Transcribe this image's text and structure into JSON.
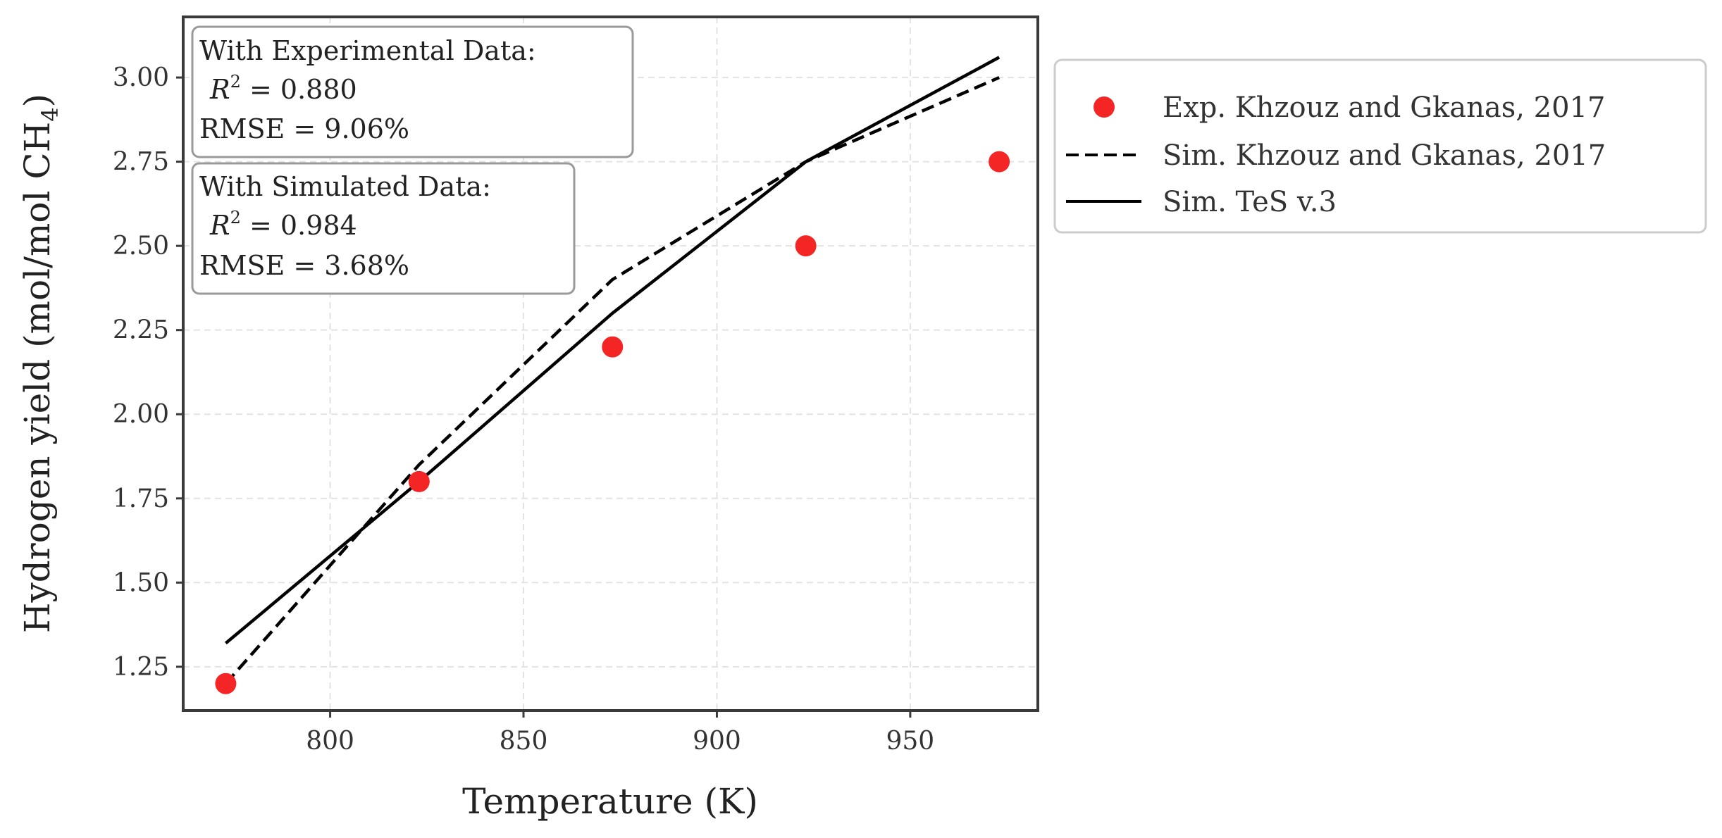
{
  "chart_data": {
    "type": "line",
    "title": "",
    "xlabel": "Temperature (K)",
    "ylabel": {
      "main": "Hydrogen yield (mol/mol CH",
      "subscript": "4",
      "close": ")"
    },
    "xlim": [
      762,
      983
    ],
    "ylim": [
      1.12,
      3.18
    ],
    "xticks": [
      800,
      850,
      900,
      950
    ],
    "xtick_labels": [
      "800",
      "850",
      "900",
      "950"
    ],
    "yticks": [
      1.25,
      1.5,
      1.75,
      2.0,
      2.25,
      2.5,
      2.75,
      3.0
    ],
    "ytick_labels": [
      "1.25",
      "1.50",
      "1.75",
      "2.00",
      "2.25",
      "2.50",
      "2.75",
      "3.00"
    ],
    "grid": true,
    "legend_position": "outside-right",
    "series": [
      {
        "name": "Exp. Khzouz and Gkanas, 2017",
        "kind": "scatter",
        "color": "#f42525",
        "x": [
          773,
          823,
          873,
          923,
          973
        ],
        "y": [
          1.2,
          1.8,
          2.2,
          2.5,
          2.75
        ]
      },
      {
        "name": "Sim. Khzouz and Gkanas, 2017",
        "kind": "line",
        "style": "dashed",
        "color": "#000000",
        "x": [
          773,
          823,
          873,
          923,
          973
        ],
        "y": [
          1.2,
          1.85,
          2.4,
          2.75,
          3.0
        ]
      },
      {
        "name": "Sim. TeS v.3",
        "kind": "line",
        "style": "solid",
        "color": "#000000",
        "x": [
          773,
          823,
          873,
          923,
          973
        ],
        "y": [
          1.32,
          1.8,
          2.3,
          2.75,
          3.06
        ]
      }
    ],
    "annotations": [
      {
        "title": "With Experimental Data:",
        "r2_symbol": "R",
        "r2_exp": "2",
        "r2_value": " = 0.880",
        "rmse": "RMSE = 9.06%"
      },
      {
        "title": "With Simulated Data:",
        "r2_symbol": "R",
        "r2_exp": "2",
        "r2_value": " = 0.984",
        "rmse": "RMSE = 3.68%"
      }
    ]
  }
}
